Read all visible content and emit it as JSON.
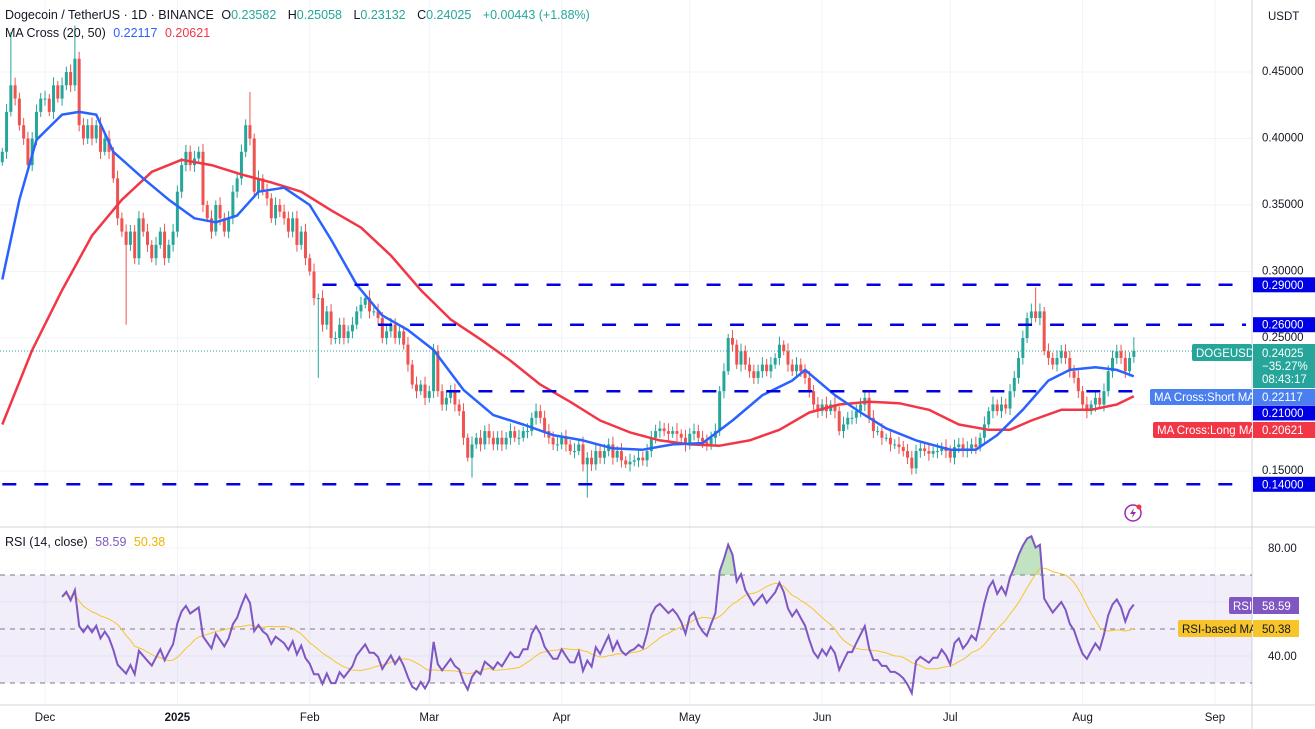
{
  "header": {
    "symbol": "Dogecoin / TetherUS · 1D · BINANCE",
    "o_label": "O",
    "o": "0.23582",
    "h_label": "H",
    "h": "0.25058",
    "l_label": "L",
    "l": "0.23132",
    "c_label": "C",
    "c": "0.24025",
    "change": "+0.00443 (+1.88%)",
    "ma_title": "MA Cross (20, 50)",
    "ma_short": "0.22117",
    "ma_long": "0.20621",
    "rsi_title": "RSI (14, close)",
    "rsi_value": "58.59",
    "rsi_ma_value": "50.38"
  },
  "currency": "USDT",
  "colors": {
    "up": "#26a69a",
    "down": "#ef5350",
    "ma_short": "#2962ff",
    "ma_long": "#f23645",
    "level": "#0000e6",
    "rsi": "#7e57c2",
    "rsi_ma": "#f7c52a",
    "overbought_fill": "#4caf50"
  },
  "price_axis": {
    "ticks": [
      "0.45000",
      "0.40000",
      "0.35000",
      "0.30000",
      "0.25000",
      "0.15000"
    ]
  },
  "levels": [
    {
      "value": "0.29000",
      "from": "2025-02-04"
    },
    {
      "value": "0.26000",
      "from": "2025-02-17"
    },
    {
      "value": "0.21000",
      "from": "2025-03-05"
    },
    {
      "value": "0.14000",
      "from": "2024-11-21"
    }
  ],
  "tags": {
    "symbol_label": "DOGEUSDT",
    "price": "0.24025",
    "change_pct": "−35.27%",
    "countdown": "08:43:17",
    "ma_short_label": "MA Cross:Short MA",
    "ma_short_value": "0.22117",
    "ma_long_label": "MA Cross:Long MA",
    "ma_long_value": "0.20621",
    "rsi_label": "RSI",
    "rsi_value": "58.59",
    "rsi_ma_label": "RSI-based MA",
    "rsi_ma_value": "50.38"
  },
  "rsi_axis": {
    "ticks": [
      "80.00",
      "40.00"
    ],
    "bands": [
      70,
      50,
      30
    ]
  },
  "time_axis": {
    "labels": [
      {
        "text": "Dec",
        "date": "2024-12-01"
      },
      {
        "text": "2025",
        "date": "2025-01-01"
      },
      {
        "text": "Feb",
        "date": "2025-02-01"
      },
      {
        "text": "Mar",
        "date": "2025-03-01"
      },
      {
        "text": "Apr",
        "date": "2025-04-01"
      },
      {
        "text": "May",
        "date": "2025-05-01"
      },
      {
        "text": "Jun",
        "date": "2025-06-01"
      },
      {
        "text": "Jul",
        "date": "2025-07-01"
      },
      {
        "text": "Aug",
        "date": "2025-08-01"
      },
      {
        "text": "Sep",
        "date": "2025-09-01"
      }
    ]
  },
  "icons": {
    "alert": "lightning-icon"
  },
  "chart_data": {
    "type": "candlestick",
    "interval": "1D",
    "x_start": "2024-11-21",
    "ylim": [
      0.12,
      0.49
    ],
    "closes": [
      0.39,
      0.42,
      0.44,
      0.43,
      0.41,
      0.4,
      0.38,
      0.4,
      0.42,
      0.43,
      0.43,
      0.42,
      0.44,
      0.43,
      0.44,
      0.45,
      0.44,
      0.46,
      0.41,
      0.4,
      0.41,
      0.4,
      0.41,
      0.39,
      0.4,
      0.39,
      0.37,
      0.34,
      0.33,
      0.32,
      0.33,
      0.31,
      0.34,
      0.33,
      0.32,
      0.31,
      0.32,
      0.33,
      0.31,
      0.32,
      0.33,
      0.36,
      0.38,
      0.39,
      0.38,
      0.385,
      0.39,
      0.35,
      0.34,
      0.33,
      0.35,
      0.34,
      0.33,
      0.34,
      0.36,
      0.37,
      0.39,
      0.41,
      0.4,
      0.36,
      0.37,
      0.36,
      0.355,
      0.34,
      0.35,
      0.345,
      0.34,
      0.33,
      0.34,
      0.32,
      0.33,
      0.31,
      0.3,
      0.28,
      0.28,
      0.26,
      0.27,
      0.25,
      0.25,
      0.26,
      0.25,
      0.255,
      0.26,
      0.27,
      0.275,
      0.28,
      0.27,
      0.27,
      0.265,
      0.25,
      0.255,
      0.26,
      0.25,
      0.255,
      0.245,
      0.23,
      0.215,
      0.21,
      0.215,
      0.205,
      0.21,
      0.24,
      0.21,
      0.2,
      0.205,
      0.21,
      0.2,
      0.195,
      0.175,
      0.16,
      0.17,
      0.175,
      0.17,
      0.18,
      0.175,
      0.17,
      0.175,
      0.17,
      0.175,
      0.18,
      0.175,
      0.175,
      0.18,
      0.18,
      0.19,
      0.195,
      0.19,
      0.18,
      0.175,
      0.17,
      0.17,
      0.175,
      0.17,
      0.165,
      0.165,
      0.17,
      0.155,
      0.16,
      0.155,
      0.165,
      0.16,
      0.165,
      0.17,
      0.16,
      0.165,
      0.158,
      0.155,
      0.157,
      0.158,
      0.16,
      0.158,
      0.165,
      0.175,
      0.18,
      0.182,
      0.18,
      0.178,
      0.18,
      0.178,
      0.175,
      0.17,
      0.178,
      0.18,
      0.175,
      0.172,
      0.17,
      0.175,
      0.18,
      0.21,
      0.225,
      0.25,
      0.245,
      0.23,
      0.24,
      0.23,
      0.225,
      0.22,
      0.225,
      0.23,
      0.225,
      0.23,
      0.235,
      0.245,
      0.24,
      0.23,
      0.225,
      0.23,
      0.225,
      0.22,
      0.21,
      0.2,
      0.195,
      0.2,
      0.195,
      0.2,
      0.195,
      0.18,
      0.185,
      0.19,
      0.19,
      0.195,
      0.2,
      0.205,
      0.19,
      0.18,
      0.18,
      0.175,
      0.175,
      0.17,
      0.17,
      0.168,
      0.165,
      0.16,
      0.152,
      0.165,
      0.167,
      0.165,
      0.163,
      0.165,
      0.165,
      0.168,
      0.165,
      0.16,
      0.168,
      0.17,
      0.165,
      0.167,
      0.17,
      0.168,
      0.175,
      0.185,
      0.195,
      0.2,
      0.195,
      0.2,
      0.197,
      0.21,
      0.22,
      0.235,
      0.25,
      0.265,
      0.27,
      0.265,
      0.27,
      0.24,
      0.235,
      0.23,
      0.235,
      0.24,
      0.235,
      0.225,
      0.22,
      0.21,
      0.2,
      0.195,
      0.2,
      0.205,
      0.2,
      0.21,
      0.225,
      0.235,
      0.24,
      0.235,
      0.225,
      0.235,
      0.24025
    ],
    "last_candle": {
      "open": 0.23582,
      "high": 0.25058,
      "low": 0.23132,
      "close": 0.24025
    },
    "extremes": [
      {
        "date": "2024-11-23",
        "high": 0.48
      },
      {
        "date": "2024-12-08",
        "high": 0.485
      },
      {
        "date": "2024-12-20",
        "low": 0.26
      },
      {
        "date": "2025-01-18",
        "high": 0.435
      },
      {
        "date": "2025-02-03",
        "low": 0.22
      },
      {
        "date": "2025-03-11",
        "low": 0.145
      },
      {
        "date": "2025-04-07",
        "low": 0.13
      },
      {
        "date": "2025-07-21",
        "high": 0.288
      }
    ],
    "ma_short": [
      [
        "2024-11-21",
        0.294
      ],
      [
        "2024-11-25",
        0.354
      ],
      [
        "2024-11-29",
        0.399
      ],
      [
        "2024-12-05",
        0.418
      ],
      [
        "2024-12-09",
        0.42
      ],
      [
        "2024-12-13",
        0.418
      ],
      [
        "2024-12-17",
        0.39
      ],
      [
        "2024-12-24",
        0.37
      ],
      [
        "2024-12-30",
        0.354
      ],
      [
        "2025-01-05",
        0.34
      ],
      [
        "2025-01-10",
        0.337
      ],
      [
        "2025-01-15",
        0.342
      ],
      [
        "2025-01-20",
        0.36
      ],
      [
        "2025-01-26",
        0.363
      ],
      [
        "2025-02-01",
        0.35
      ],
      [
        "2025-02-06",
        0.324
      ],
      [
        "2025-02-12",
        0.29
      ],
      [
        "2025-02-18",
        0.267
      ],
      [
        "2025-02-24",
        0.256
      ],
      [
        "2025-03-02",
        0.241
      ],
      [
        "2025-03-09",
        0.211
      ],
      [
        "2025-03-16",
        0.192
      ],
      [
        "2025-03-23",
        0.185
      ],
      [
        "2025-03-30",
        0.177
      ],
      [
        "2025-04-06",
        0.173
      ],
      [
        "2025-04-13",
        0.167
      ],
      [
        "2025-04-20",
        0.166
      ],
      [
        "2025-04-27",
        0.17
      ],
      [
        "2025-05-04",
        0.171
      ],
      [
        "2025-05-11",
        0.188
      ],
      [
        "2025-05-18",
        0.207
      ],
      [
        "2025-05-25",
        0.218
      ],
      [
        "2025-05-28",
        0.226
      ],
      [
        "2025-06-04",
        0.207
      ],
      [
        "2025-06-10",
        0.194
      ],
      [
        "2025-06-16",
        0.182
      ],
      [
        "2025-06-23",
        0.173
      ],
      [
        "2025-07-01",
        0.166
      ],
      [
        "2025-07-07",
        0.166
      ],
      [
        "2025-07-12",
        0.177
      ],
      [
        "2025-07-18",
        0.196
      ],
      [
        "2025-07-24",
        0.218
      ],
      [
        "2025-07-29",
        0.226
      ],
      [
        "2025-08-04",
        0.228
      ],
      [
        "2025-08-09",
        0.226
      ],
      [
        "2025-08-13",
        0.22117
      ]
    ],
    "ma_long": [
      [
        "2024-11-21",
        0.185
      ],
      [
        "2024-11-28",
        0.241
      ],
      [
        "2024-12-05",
        0.286
      ],
      [
        "2024-12-12",
        0.327
      ],
      [
        "2024-12-19",
        0.354
      ],
      [
        "2024-12-26",
        0.375
      ],
      [
        "2025-01-02",
        0.384
      ],
      [
        "2025-01-09",
        0.38
      ],
      [
        "2025-01-16",
        0.373
      ],
      [
        "2025-01-23",
        0.367
      ],
      [
        "2025-01-30",
        0.36
      ],
      [
        "2025-02-06",
        0.346
      ],
      [
        "2025-02-13",
        0.333
      ],
      [
        "2025-02-20",
        0.312
      ],
      [
        "2025-02-27",
        0.286
      ],
      [
        "2025-03-06",
        0.264
      ],
      [
        "2025-03-13",
        0.249
      ],
      [
        "2025-03-20",
        0.233
      ],
      [
        "2025-03-27",
        0.215
      ],
      [
        "2025-04-03",
        0.202
      ],
      [
        "2025-04-10",
        0.188
      ],
      [
        "2025-04-17",
        0.179
      ],
      [
        "2025-04-24",
        0.173
      ],
      [
        "2025-05-01",
        0.17
      ],
      [
        "2025-05-08",
        0.169
      ],
      [
        "2025-05-15",
        0.173
      ],
      [
        "2025-05-22",
        0.181
      ],
      [
        "2025-05-29",
        0.194
      ],
      [
        "2025-06-05",
        0.2
      ],
      [
        "2025-06-12",
        0.202
      ],
      [
        "2025-06-19",
        0.201
      ],
      [
        "2025-06-26",
        0.196
      ],
      [
        "2025-07-03",
        0.185
      ],
      [
        "2025-07-10",
        0.181
      ],
      [
        "2025-07-15",
        0.181
      ],
      [
        "2025-07-20",
        0.188
      ],
      [
        "2025-07-27",
        0.196
      ],
      [
        "2025-08-03",
        0.196
      ],
      [
        "2025-08-09",
        0.2
      ],
      [
        "2025-08-13",
        0.20621
      ]
    ],
    "rsi": {
      "period": 14,
      "ma_period": 14,
      "ylim": [
        20,
        90
      ]
    }
  }
}
